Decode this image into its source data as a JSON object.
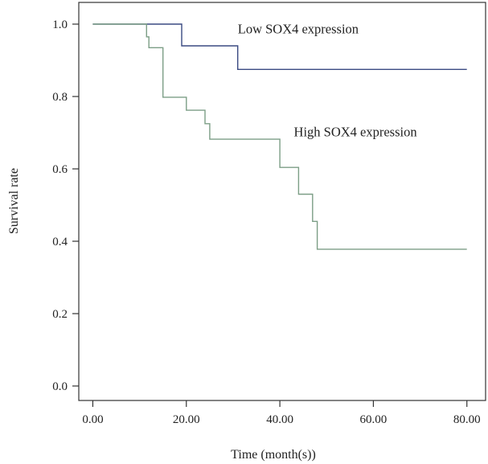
{
  "chart_data": {
    "type": "line",
    "step": true,
    "xlabel": "Time (month(s))",
    "ylabel": "Survival rate",
    "xlim": [
      -3,
      84
    ],
    "ylim": [
      -0.04,
      1.06
    ],
    "x_ticks": [
      0,
      20,
      40,
      60,
      80
    ],
    "x_tick_labels": [
      "0.00",
      "20.00",
      "40.00",
      "60.00",
      "80.00"
    ],
    "y_ticks": [
      0.0,
      0.2,
      0.4,
      0.6,
      0.8,
      1.0
    ],
    "y_tick_labels": [
      "0.0",
      "0.2",
      "0.4",
      "0.6",
      "0.8",
      "1.0"
    ],
    "grid": false,
    "series": [
      {
        "name": "Low SOX4 expression",
        "color": "#3a4a82",
        "points": [
          [
            0,
            1.0
          ],
          [
            19,
            1.0
          ],
          [
            19,
            0.94
          ],
          [
            31,
            0.94
          ],
          [
            31,
            0.875
          ],
          [
            80,
            0.875
          ]
        ]
      },
      {
        "name": "High SOX4 expression",
        "color": "#7c9e86",
        "points": [
          [
            0,
            1.0
          ],
          [
            11.5,
            1.0
          ],
          [
            11.5,
            0.965
          ],
          [
            12,
            0.965
          ],
          [
            12,
            0.935
          ],
          [
            15,
            0.935
          ],
          [
            15,
            0.798
          ],
          [
            20,
            0.798
          ],
          [
            20,
            0.762
          ],
          [
            24,
            0.762
          ],
          [
            24,
            0.725
          ],
          [
            25,
            0.725
          ],
          [
            25,
            0.682
          ],
          [
            40,
            0.682
          ],
          [
            40,
            0.604
          ],
          [
            44,
            0.604
          ],
          [
            44,
            0.53
          ],
          [
            47,
            0.53
          ],
          [
            47,
            0.455
          ],
          [
            48,
            0.455
          ],
          [
            48,
            0.378
          ],
          [
            80,
            0.378
          ]
        ]
      }
    ],
    "annotations": [
      {
        "text": "Low SOX4 expression",
        "x": 31,
        "y": 0.975
      },
      {
        "text": "High SOX4 expression",
        "x": 43,
        "y": 0.69
      }
    ]
  }
}
